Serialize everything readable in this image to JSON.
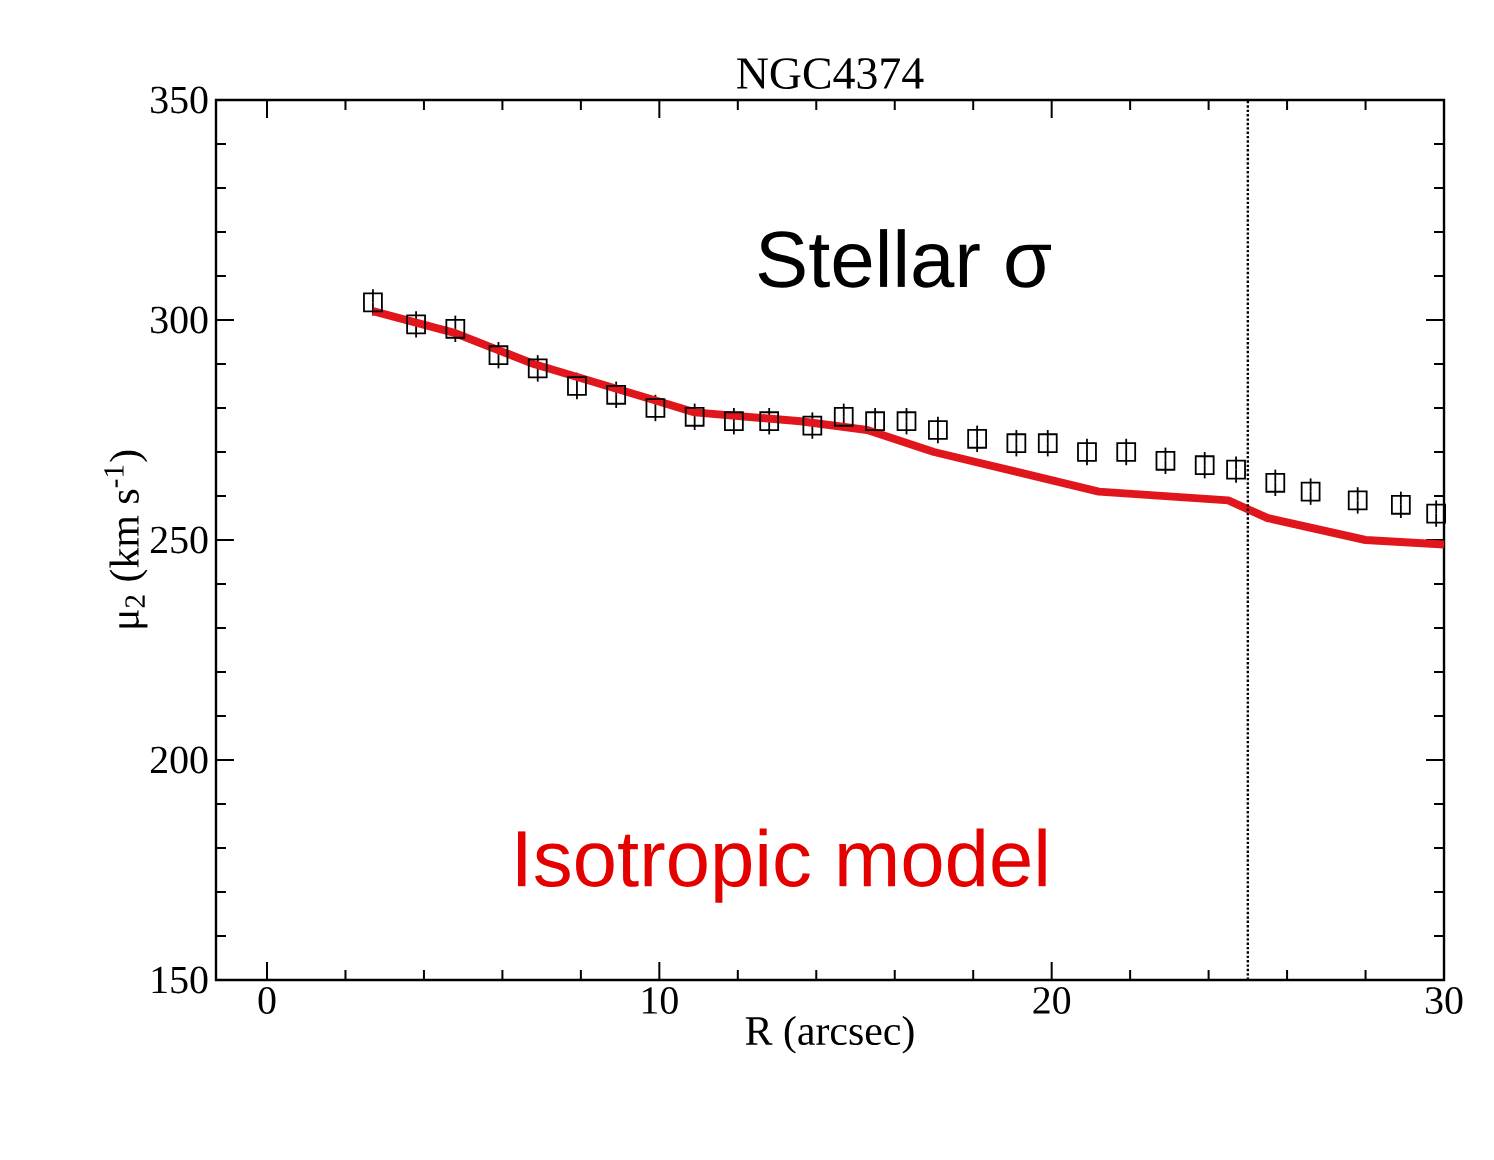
{
  "chart_data": {
    "type": "scatter",
    "title": "NGC4374",
    "xlabel": "R (arcsec)",
    "ylabel": "μ$_{2}$ (km s$^{-1}$)",
    "xlim": [
      -1.3,
      30
    ],
    "xticks": [
      0,
      10,
      20,
      30
    ],
    "ylim": [
      150,
      350
    ],
    "yticks": [
      150,
      200,
      250,
      300,
      350
    ],
    "marker": "square",
    "series": [
      {
        "color": "#000000",
        "x": [
          2.7,
          3.8,
          4.8,
          5.9,
          6.9,
          7.9,
          8.9,
          9.9,
          10.9,
          11.9,
          12.8,
          13.9,
          14.7,
          15.5,
          16.3,
          17.1,
          18.1,
          19.1,
          19.9,
          20.9,
          21.9,
          22.9,
          23.9,
          24.7,
          25.7,
          26.6,
          27.8,
          28.9,
          29.8
        ],
        "values": [
          304,
          299,
          298,
          292,
          289,
          285,
          283,
          280,
          278,
          277,
          277,
          276,
          278,
          277,
          277,
          275,
          273,
          272,
          272,
          270,
          270,
          268,
          267,
          266,
          263,
          261,
          259,
          258,
          256
        ],
        "errors": [
          3,
          3,
          3,
          3,
          3,
          3,
          3,
          3,
          3,
          3,
          3,
          3,
          3,
          3,
          3,
          3,
          3,
          3,
          3,
          3,
          3,
          3,
          3,
          3,
          3,
          3,
          3,
          3,
          3
        ]
      },
      {
        "type": "line",
        "color": "#e0161c",
        "marker": "none",
        "x": [
          2.7,
          4.8,
          6.8,
          9.8,
          10.9,
          13.6,
          15.3,
          17,
          21.2,
          24.5,
          25.5,
          28,
          30
        ],
        "values": [
          302,
          297,
          290,
          282,
          279,
          277,
          275,
          270,
          261,
          259,
          255,
          250,
          249
        ]
      }
    ],
    "ref_lines": [
      {
        "axis": "x",
        "value": 25,
        "color": "#000000",
        "line_style": "dotted"
      }
    ],
    "annotations": [
      "Stellar σ",
      "Isotropic model"
    ]
  }
}
